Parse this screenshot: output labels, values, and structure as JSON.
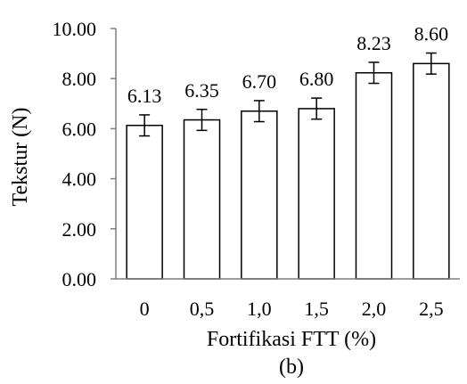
{
  "chart_data": {
    "type": "bar",
    "categories": [
      "0",
      "0,5",
      "1,0",
      "1,5",
      "2,0",
      "2,5"
    ],
    "values": [
      6.13,
      6.35,
      6.7,
      6.8,
      8.23,
      8.6
    ],
    "data_labels": [
      "6.13",
      "6.35",
      "6.70",
      "6.80",
      "8.23",
      "8.60"
    ],
    "error": [
      0.42,
      0.42,
      0.42,
      0.42,
      0.42,
      0.42
    ],
    "xlabel": "Fortifikasi FTT (%)",
    "ylabel": "Tekstur (N)",
    "ylim": [
      0,
      10
    ],
    "yticks": [
      {
        "value": 0,
        "label": "0.00"
      },
      {
        "value": 2,
        "label": "2.00"
      },
      {
        "value": 4,
        "label": "4.00"
      },
      {
        "value": 6,
        "label": "6.00"
      },
      {
        "value": 8,
        "label": "8.00"
      },
      {
        "value": 10,
        "label": "10.00"
      }
    ],
    "caption": "(b)",
    "grid": false,
    "colors": {
      "bar_fill": "#ffffff",
      "bar_stroke": "#000000",
      "axis": "#7f7f7f"
    }
  }
}
